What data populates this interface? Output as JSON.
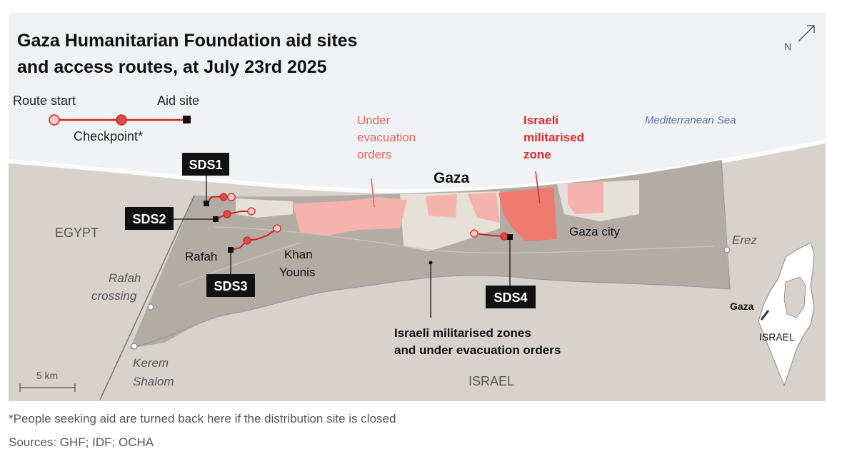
{
  "title_line1": "Gaza Humanitarian Foundation aid sites",
  "title_line2": "and access routes, at July 23rd 2025",
  "north_label": "N",
  "legend": {
    "route_start": "Route start",
    "aid_site": "Aid site",
    "checkpoint": "Checkpoint*"
  },
  "labels": {
    "sea": "Mediterranean Sea",
    "under_evac_1": "Under",
    "under_evac_2": "evacuation",
    "under_evac_3": "orders",
    "mil_zone_1": "Israeli",
    "mil_zone_2": "militarised",
    "mil_zone_3": "zone",
    "gaza": "Gaza",
    "gaza_city": "Gaza city",
    "egypt": "EGYPT",
    "israel": "ISRAEL",
    "rafah": "Rafah",
    "khan_younis_1": "Khan",
    "khan_younis_2": "Younis",
    "rafah_crossing_1": "Rafah",
    "rafah_crossing_2": "crossing",
    "kerem_shalom_1": "Kerem",
    "kerem_shalom_2": "Shalom",
    "erez": "Erez",
    "combined_1": "Israeli militarised zones",
    "combined_2": "and under evacuation orders",
    "scale": "5 km",
    "inset_gaza": "Gaza",
    "inset_israel": "ISRAEL"
  },
  "sites": {
    "sds1": "SDS1",
    "sds2": "SDS2",
    "sds3": "SDS3",
    "sds4": "SDS4"
  },
  "colors": {
    "background": "#f1f2f5",
    "sea": "#ffffff",
    "land": "#d7d2cc",
    "strip": "#b2aca4",
    "evacuation": "#f6b3ad",
    "militarised": "#ee7a70",
    "route": "#cc2626",
    "label_dark": "#111111"
  },
  "footnote": "*People seeking aid are turned back here if the distribution site is closed",
  "sources": "Sources: GHF; IDF; OCHA"
}
